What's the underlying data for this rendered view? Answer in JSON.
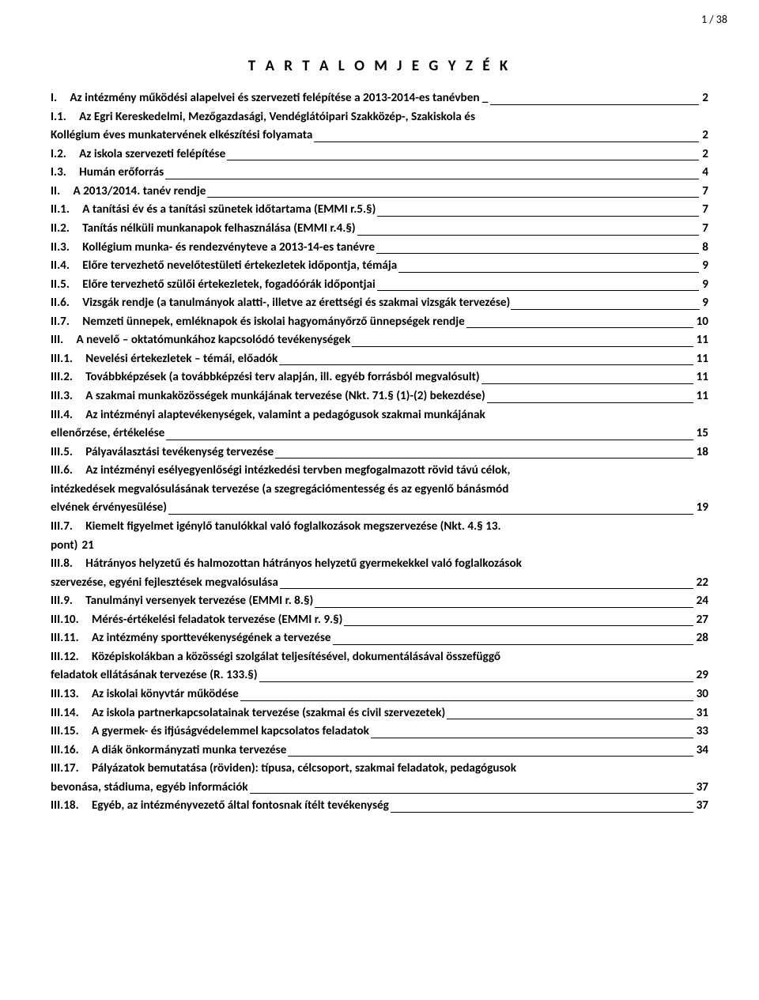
{
  "page_number": "1 / 38",
  "title": "T A R T A L O M J E G Y Z É K",
  "font": {
    "family": "Calibri",
    "size_pt": 11,
    "weight": "bold",
    "color": "#000000"
  },
  "colors": {
    "background": "#ffffff",
    "text": "#000000",
    "leader": "#000000"
  },
  "entries": [
    {
      "level": 0,
      "num": "I.",
      "text": "Az intézmény működési alapelvei és szervezeti felépítése a 2013-2014-es tanévben _",
      "page": "2",
      "wrap": false
    },
    {
      "level": 0,
      "num": "I.1.",
      "text": "Az Egri Kereskedelmi, Mezőgazdasági, Vendéglátóipari Szakközép-, Szakiskola és",
      "cont": "Kollégium éves munkatervének elkészítési folyamata",
      "page": "2",
      "wrap": true
    },
    {
      "level": 0,
      "num": "I.2.",
      "text": "Az iskola szervezeti felépítése",
      "page": "2",
      "wrap": false
    },
    {
      "level": 0,
      "num": "I.3.",
      "text": "Humán erőforrás",
      "page": "4",
      "wrap": false
    },
    {
      "level": 0,
      "num": "II.",
      "text": "A 2013/2014. tanév rendje",
      "page": "7",
      "wrap": false
    },
    {
      "level": 0,
      "num": "II.1.",
      "text": "A tanítási év és a tanítási szünetek időtartama (EMMI r.5.§)",
      "page": "7",
      "wrap": false
    },
    {
      "level": 0,
      "num": "II.2.",
      "text": "Tanítás nélküli munkanapok felhasználása (EMMI r.4.§)",
      "page": "7",
      "wrap": false
    },
    {
      "level": 0,
      "num": "II.3.",
      "text": "Kollégium munka- és rendezvényteve a 2013-14-es tanévre",
      "page": "8",
      "wrap": false
    },
    {
      "level": 0,
      "num": "II.4.",
      "text": "Előre tervezhető nevelőtestületi értekezletek időpontja, témája",
      "page": "9",
      "wrap": false
    },
    {
      "level": 0,
      "num": "II.5.",
      "text": "Előre tervezhető szülői értekezletek, fogadóórák időpontjai",
      "page": "9",
      "wrap": false
    },
    {
      "level": 0,
      "num": "II.6.",
      "text": "Vizsgák rendje (a tanulmányok alatti-, illetve az érettségi és szakmai vizsgák tervezése)",
      "page": "9",
      "wrap": false,
      "tight": true
    },
    {
      "level": 0,
      "num": "II.7.",
      "text": "Nemzeti ünnepek, emléknapok és iskolai hagyományőrző ünnepségek rendje",
      "page": "10",
      "wrap": false
    },
    {
      "level": 0,
      "num": "III.",
      "text": "A nevelő – oktatómunkához kapcsolódó tevékenységek",
      "page": "11",
      "wrap": false
    },
    {
      "level": 0,
      "num": "III.1.",
      "text": "Nevelési értekezletek – témái, előadók",
      "page": "11",
      "wrap": false
    },
    {
      "level": 0,
      "num": "III.2.",
      "text": "Továbbképzések (a továbbképzési terv alapján, ill. egyéb forrásból megvalósult)",
      "page": "11",
      "wrap": false
    },
    {
      "level": 0,
      "num": "III.3.",
      "text": "A szakmai munkaközösségek munkájának tervezése (Nkt. 71.§ (1)-(2) bekezdése)",
      "page": "11",
      "wrap": false
    },
    {
      "level": 0,
      "num": "III.4.",
      "text": "Az intézményi alaptevékenységek, valamint a pedagógusok szakmai munkájának",
      "cont": "ellenőrzése, értékelése",
      "page": "15",
      "wrap": true
    },
    {
      "level": 0,
      "num": "III.5.",
      "text": "Pályaválasztási tevékenység tervezése",
      "page": "18",
      "wrap": false
    },
    {
      "level": 0,
      "num": "III.6.",
      "text": "Az intézményi esélyegyenlőségi intézkedési tervben megfogalmazott rövid távú célok,",
      "cont": "intézkedések megvalósulásának tervezése (a szegregációmentesség és az egyenlő bánásmód",
      "cont2": "elvének érvényesülése)",
      "page": "19",
      "wrap": true
    },
    {
      "level": 0,
      "num": "III.7.",
      "text": "Kiemelt figyelmet igénylő tanulókkal való foglalkozások megszervezése (Nkt. 4.§ 13.",
      "cont": "pont) 21",
      "page": "",
      "wrap": true,
      "plain_tail": true
    },
    {
      "level": 0,
      "num": "III.8.",
      "text": "Hátrányos helyzetű és halmozottan hátrányos helyzetű gyermekekkel való foglalkozások",
      "cont": "szervezése, egyéni fejlesztések megvalósulása",
      "page": "22",
      "wrap": true
    },
    {
      "level": 0,
      "num": "III.9.",
      "text": "Tanulmányi versenyek tervezése (EMMI r. 8.§)",
      "page": "24",
      "wrap": false
    },
    {
      "level": 0,
      "num": "III.10.",
      "text": "Mérés-értékelési feladatok tervezése (EMMI r. 9.§)",
      "page": "27",
      "wrap": false
    },
    {
      "level": 0,
      "num": "III.11.",
      "text": "Az intézmény sporttevékenységének a tervezése",
      "page": "28",
      "wrap": false
    },
    {
      "level": 0,
      "num": "III.12.",
      "text": "Középiskolákban a közösségi szolgálat teljesítésével, dokumentálásával összefüggő",
      "cont": "feladatok ellátásának tervezése (R. 133.§)",
      "page": "29",
      "wrap": true
    },
    {
      "level": 0,
      "num": "III.13.",
      "text": "Az iskolai könyvtár működése",
      "page": "30",
      "wrap": false
    },
    {
      "level": 0,
      "num": "III.14.",
      "text": "Az iskola partnerkapcsolatainak tervezése (szakmai és civil szervezetek)",
      "page": "31",
      "wrap": false
    },
    {
      "level": 0,
      "num": "III.15.",
      "text": "A gyermek- és ifjúságvédelemmel kapcsolatos feladatok",
      "page": "33",
      "wrap": false
    },
    {
      "level": 0,
      "num": "III.16.",
      "text": "A diák önkormányzati munka tervezése",
      "page": "34",
      "wrap": false
    },
    {
      "level": 0,
      "num": "III.17.",
      "text": "Pályázatok bemutatása (röviden): típusa, célcsoport, szakmai feladatok, pedagógusok",
      "cont": "bevonása, stádiuma, egyéb információk",
      "page": "37",
      "wrap": true
    },
    {
      "level": 0,
      "num": "III.18.",
      "text": "Egyéb, az intézményvezető által fontosnak ítélt tevékenység",
      "page": "37",
      "wrap": false
    }
  ]
}
